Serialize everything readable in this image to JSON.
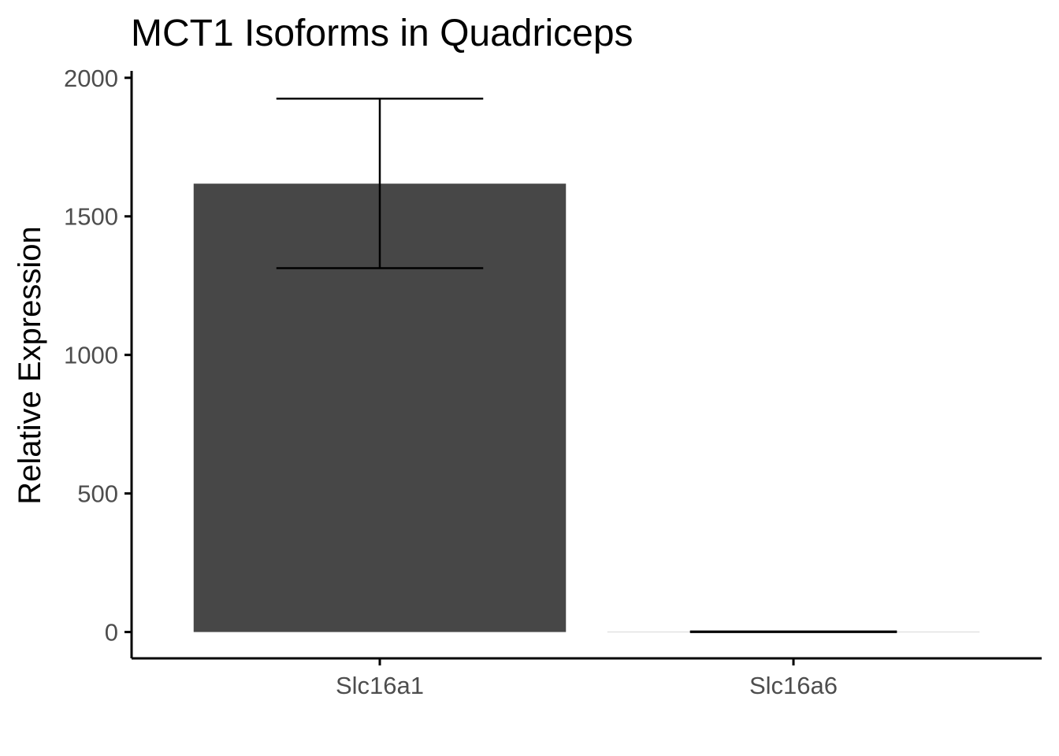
{
  "chart_data": {
    "type": "bar",
    "title": "MCT1 Isoforms in Quadriceps",
    "xlabel": "",
    "ylabel": "Relative Expression",
    "categories": [
      "Slc16a1",
      "Slc16a6"
    ],
    "values": [
      1618,
      1
    ],
    "error_bars": [
      {
        "lower": 1313,
        "upper": 1925
      },
      {
        "lower": 0,
        "upper": 2
      }
    ],
    "ylim": [
      -95,
      2025
    ],
    "yticks": [
      0,
      500,
      1000,
      1500,
      2000
    ],
    "ytick_labels": [
      "0",
      "500",
      "1000",
      "1500",
      "2000"
    ],
    "grid": false,
    "legend": "none",
    "bar_color": "#474747",
    "error_bar_color": "#000000"
  }
}
